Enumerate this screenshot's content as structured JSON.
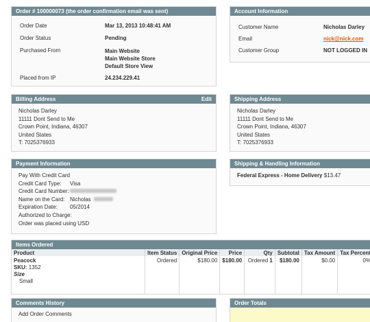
{
  "order_box": {
    "title": "Order # 100000073 (the order confirmation email was sent)",
    "rows": [
      {
        "label": "Order Date",
        "value": "Mar 13, 2013 10:48:41 AM"
      },
      {
        "label": "Order Status",
        "value": "Pending"
      },
      {
        "label": "Purchased From",
        "value_lines": [
          "Main Website",
          "Main Website Store",
          "Default Store View"
        ]
      },
      {
        "label": "Placed from IP",
        "value": "24.234.229.41"
      }
    ]
  },
  "account_box": {
    "title": "Account Information",
    "rows": [
      {
        "label": "Customer Name",
        "value": "Nicholas Darley"
      },
      {
        "label": "Email",
        "value": "nick@nick.com"
      },
      {
        "label": "Customer Group",
        "value": "NOT LOGGED IN"
      }
    ]
  },
  "billing_box": {
    "title": "Billing Address",
    "edit_label": "Edit",
    "lines": [
      "Nicholas Darley",
      "11111 Dont Send to Me",
      "Crown Point, Indiana, 46307",
      "United States",
      "T: 7025376933"
    ]
  },
  "shipping_box": {
    "title": "Shipping Address",
    "lines": [
      "Nicholas Darley",
      "11111 Dont Send to Me",
      "Crown Point, Indiana, 46307",
      "United States",
      "T: 7025376933"
    ]
  },
  "payment_box": {
    "title": "Payment Information",
    "method": "Pay With Credit Card",
    "rows": [
      {
        "label": "Credit Card Type:",
        "value": "Visa"
      },
      {
        "label": "Credit Card Number:",
        "value": ""
      },
      {
        "label": "Name on the Card:",
        "value": "Nicholas"
      },
      {
        "label": "Expiration Date:",
        "value": "05/2014"
      },
      {
        "label": "Authorized to Charge:",
        "value": ""
      }
    ],
    "currency_note": "Order was placed using USD"
  },
  "shipping_method_box": {
    "title": "Shipping & Handling Information",
    "method": "Federal Express - Home Delivery",
    "price": "$13.47"
  },
  "items_box": {
    "title": "Items Ordered",
    "columns": [
      "Product",
      "Item Status",
      "Original Price",
      "Price",
      "Qty",
      "Subtotal",
      "Tax Amount",
      "Tax Percent"
    ],
    "row": {
      "product": "Peacock",
      "sku_label": "SKU:",
      "sku": "1352",
      "option_label": "Size",
      "option_value": "Small",
      "status": "Ordered",
      "original_price": "$180.00",
      "price": "$180.00",
      "qty_label": "Ordered",
      "qty": "1",
      "subtotal": "$180.00",
      "tax_amount": "$0.00",
      "tax_percent": "0%"
    }
  },
  "comments_box": {
    "title": "Comments History",
    "add_label": "Add Order Comments"
  },
  "totals_box": {
    "title": "Order Totals"
  }
}
